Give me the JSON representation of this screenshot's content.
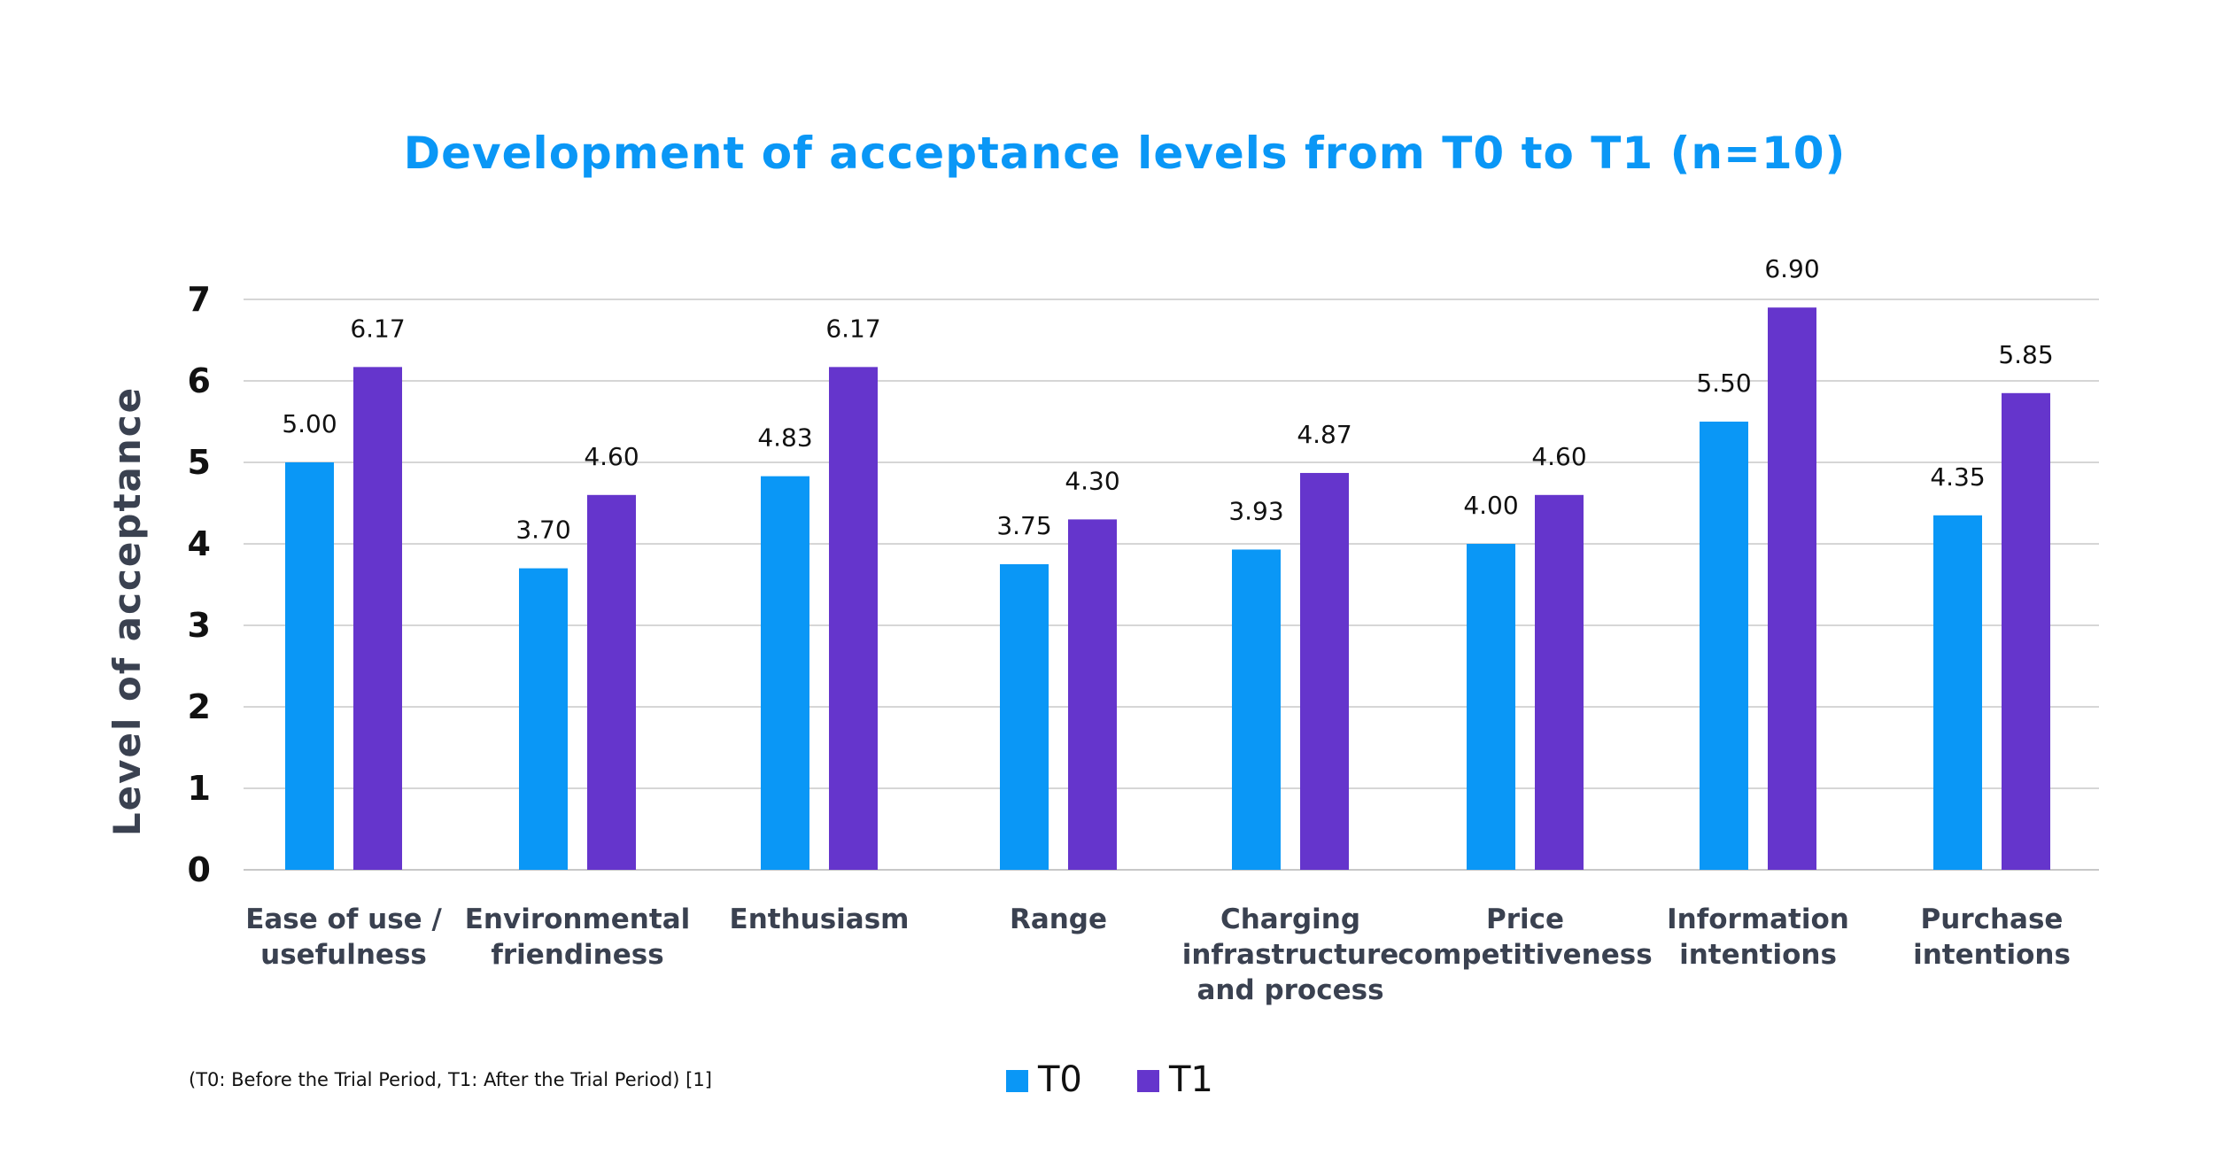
{
  "chart_data": {
    "type": "bar",
    "title": "Development of acceptance levels from T0 to T1 (n=10)",
    "xlabel": "",
    "ylabel": "Level of acceptance",
    "ylim": [
      0,
      7
    ],
    "yticks": [
      "0",
      "1",
      "2",
      "3",
      "4",
      "5",
      "6",
      "7"
    ],
    "grid": true,
    "legend_position": "bottom-center",
    "categories": [
      [
        "Ease of use /",
        "usefulness"
      ],
      [
        "Environmental",
        "friendiness"
      ],
      [
        "Enthusiasm"
      ],
      [
        "Range"
      ],
      [
        "Charging",
        "infrastructure",
        "and process"
      ],
      [
        "Price",
        "competitiveness"
      ],
      [
        "Information",
        "intentions"
      ],
      [
        "Purchase",
        "intentions"
      ]
    ],
    "series": [
      {
        "name": "T0",
        "color": "#0A97F6",
        "values": [
          5.0,
          3.7,
          4.83,
          3.75,
          3.93,
          4.0,
          5.5,
          4.35
        ],
        "labels": [
          "5.00",
          "3.70",
          "4.83",
          "3.75",
          "3.93",
          "4.00",
          "5.50",
          "4.35"
        ]
      },
      {
        "name": "T1",
        "color": "#6535CC",
        "values": [
          6.17,
          4.6,
          6.17,
          4.3,
          4.87,
          4.6,
          6.9,
          5.85
        ],
        "labels": [
          "6.17",
          "4.60",
          "6.17",
          "4.30",
          "4.87",
          "4.60",
          "6.90",
          "5.85"
        ]
      }
    ],
    "footnote": "(T0: Before the Trial Period, T1: After the Trial Period) [1]"
  },
  "colors": {
    "title": "#0A97F6",
    "axis_text": "#3A4150",
    "tick_text": "#111111",
    "grid": "#D6D6D6",
    "axis_line": "#C8C8C8"
  }
}
